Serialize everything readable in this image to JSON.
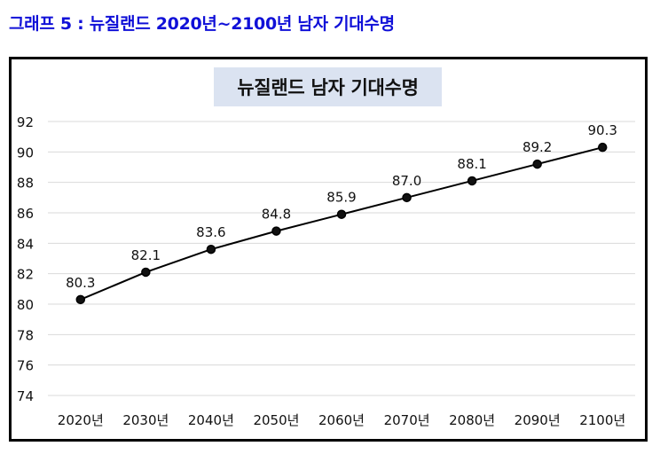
{
  "caption": "그래프 5 : 뉴질랜드 2020년~2100년 남자 기대수명",
  "chart_data": {
    "type": "line",
    "title": "뉴질랜드 남자 기대수명",
    "categories": [
      "2020년",
      "2030년",
      "2040년",
      "2050년",
      "2060년",
      "2070년",
      "2080년",
      "2090년",
      "2100년"
    ],
    "series": [
      {
        "values": [
          80.3,
          82.1,
          83.6,
          84.8,
          85.9,
          87.0,
          88.1,
          89.2,
          90.3
        ]
      }
    ],
    "data_labels": [
      "80.3",
      "82.1",
      "83.6",
      "84.8",
      "85.9",
      "87.0",
      "88.1",
      "89.2",
      "90.3"
    ],
    "xlabel": "",
    "ylabel": "",
    "ylim": [
      74,
      92
    ],
    "yticks": [
      74,
      76,
      78,
      80,
      82,
      84,
      86,
      88,
      90,
      92
    ],
    "grid": true,
    "legend": "none",
    "line_color": "#000000",
    "grid_color": "#d9d9d9"
  }
}
